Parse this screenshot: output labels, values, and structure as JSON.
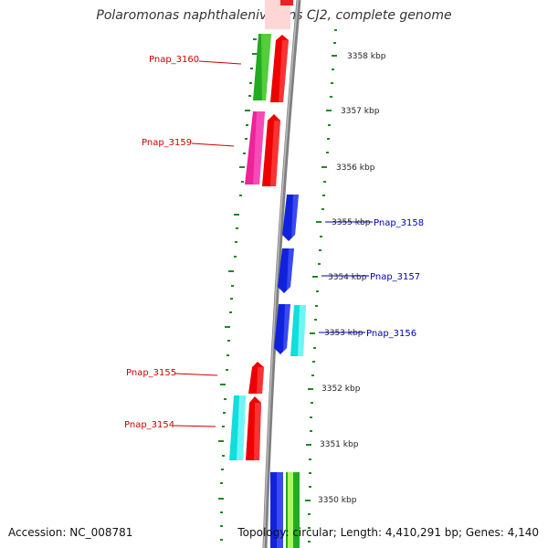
{
  "title": "Polaromonas naphthalenivorans CJ2, complete genome",
  "footer": {
    "accession": "Accession: NC_008781",
    "summary": "Topology: circular; Length: 4,410,291 bp; Genes: 4,140"
  },
  "kbp_labels": [
    "3358 kbp",
    "3357 kbp",
    "3356 kbp",
    "3355 kbp",
    "3354 kbp",
    "3353 kbp",
    "3352 kbp",
    "3351 kbp",
    "3350 kbp"
  ],
  "genes_left": [
    {
      "label": "Pnap_3160",
      "color": "#cc0000"
    },
    {
      "label": "Pnap_3159",
      "color": "#cc0000"
    },
    {
      "label": "Pnap_3155",
      "color": "#cc0000"
    },
    {
      "label": "Pnap_3154",
      "color": "#cc0000"
    }
  ],
  "genes_right": [
    {
      "label": "Pnap_3158",
      "color": "#0000bb"
    },
    {
      "label": "Pnap_3157",
      "color": "#0000bb"
    },
    {
      "label": "Pnap_3156",
      "color": "#0000bb"
    }
  ],
  "colors": {
    "backbone": "#808080",
    "forward_strand": "#ee0000",
    "reverse_strand": "#0000ee",
    "ticks": "#228822"
  }
}
